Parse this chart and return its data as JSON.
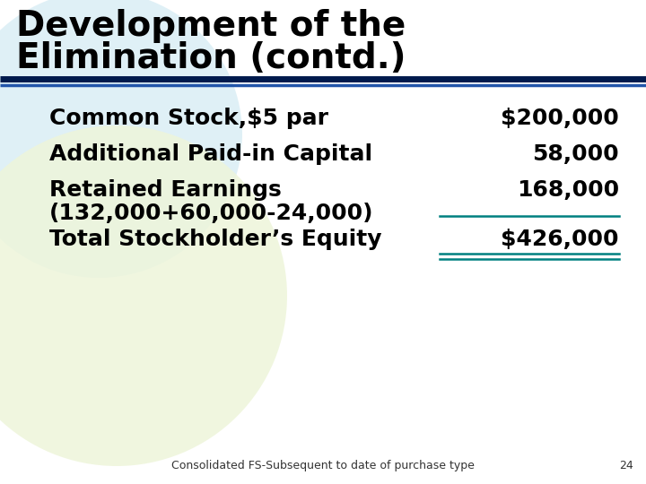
{
  "title_line1": "Development of the",
  "title_line2": "Elimination (contd.)",
  "title_fontsize": 28,
  "title_color": "#000000",
  "separator_color1": "#001a4d",
  "separator_color2": "#2255aa",
  "rows": [
    {
      "label": "Common Stock,$5 par",
      "label2": null,
      "value": "$200,000"
    },
    {
      "label": "Additional Paid-in Capital",
      "label2": null,
      "value": "58,000"
    },
    {
      "label": "Retained Earnings",
      "label2": "(132,000+60,000-24,000)",
      "value": "168,000"
    },
    {
      "label": "Total Stockholder’s Equity",
      "label2": null,
      "value": "$426,000"
    }
  ],
  "body_fontsize": 18,
  "body_color": "#000000",
  "value_color": "#000000",
  "underline_color": "#008080",
  "footer_text": "Consolidated FS-Subsequent to date of purchase type",
  "footer_page": "24",
  "footer_fontsize": 9,
  "bg_color": "#ffffff",
  "circle_color1": "#daeef5",
  "circle_color2": "#eef5da"
}
